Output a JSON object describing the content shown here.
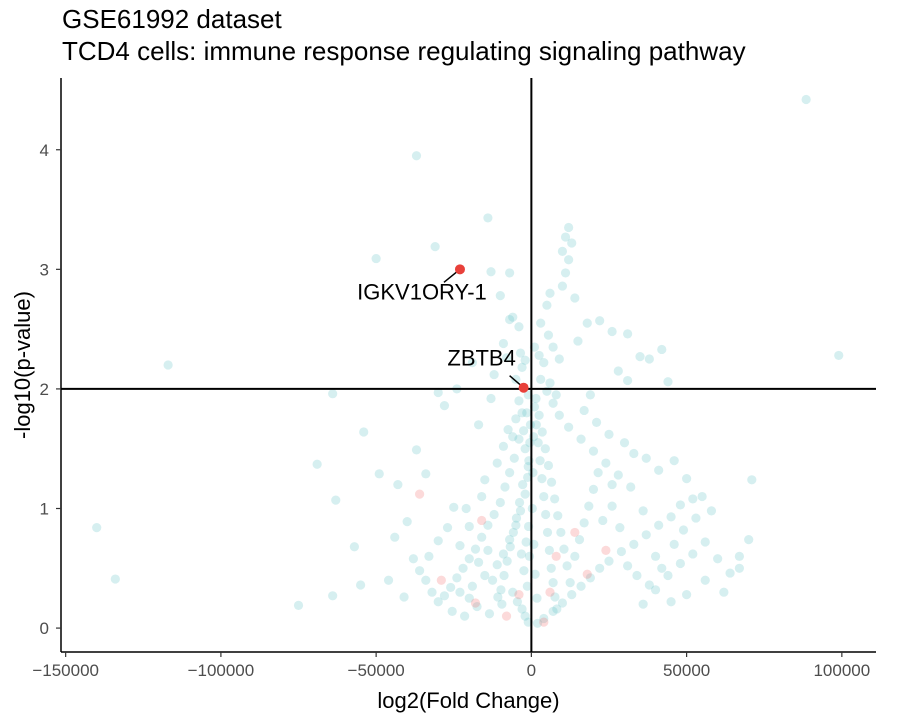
{
  "chart_data": {
    "type": "scatter",
    "title": "GSE61992 dataset",
    "subtitle": "TCD4 cells: immune response regulating signaling pathway",
    "xlabel": "log2(Fold Change)",
    "ylabel": "-log10(p-value)",
    "xlim": [
      -151500,
      111000
    ],
    "ylim": [
      -0.2,
      4.6
    ],
    "xticks": [
      -150000,
      -100000,
      -50000,
      0,
      50000,
      100000
    ],
    "xtick_labels": [
      "−150000",
      "−100000",
      "−50000",
      "0",
      "50000",
      "100000"
    ],
    "yticks": [
      0,
      1,
      2,
      3,
      4
    ],
    "ytick_labels": [
      "0",
      "1",
      "2",
      "3",
      "4"
    ],
    "reference_lines": {
      "x": 0,
      "y": 2
    },
    "grid": false,
    "legend": "none",
    "series": [
      {
        "role": "background",
        "color": "#5bc0c2",
        "opacity": 0.25,
        "points": [
          [
            88500,
            4.42
          ],
          [
            -37000,
            3.95
          ],
          [
            -14000,
            3.43
          ],
          [
            -31000,
            3.19
          ],
          [
            -50000,
            3.09
          ],
          [
            -13000,
            2.98
          ],
          [
            -7000,
            2.97
          ],
          [
            -10000,
            2.78
          ],
          [
            -4000,
            2.52
          ],
          [
            -7000,
            2.58
          ],
          [
            12000,
            3.35
          ],
          [
            11000,
            3.27
          ],
          [
            13000,
            3.22
          ],
          [
            10000,
            3.15
          ],
          [
            12000,
            3.08
          ],
          [
            11000,
            2.97
          ],
          [
            10000,
            2.86
          ],
          [
            14000,
            2.76
          ],
          [
            6000,
            2.8
          ],
          [
            5000,
            2.7
          ],
          [
            -117000,
            2.2
          ],
          [
            99000,
            2.28
          ],
          [
            -64000,
            1.96
          ],
          [
            -37000,
            1.49
          ],
          [
            -54000,
            1.64
          ],
          [
            -69000,
            1.37
          ],
          [
            -63000,
            1.07
          ],
          [
            -49000,
            1.29
          ],
          [
            -43000,
            1.2
          ],
          [
            -34000,
            1.29
          ],
          [
            -57000,
            0.68
          ],
          [
            -44000,
            0.76
          ],
          [
            -40000,
            0.89
          ],
          [
            -38000,
            0.58
          ],
          [
            -30000,
            0.73
          ],
          [
            -140000,
            0.84
          ],
          [
            -134000,
            0.41
          ],
          [
            -75000,
            0.19
          ],
          [
            -64000,
            0.27
          ],
          [
            -55000,
            0.36
          ],
          [
            -46000,
            0.4
          ],
          [
            -25000,
            1.01
          ],
          [
            -23000,
            0.69
          ],
          [
            -20000,
            0.85
          ],
          [
            -16000,
            1.1
          ],
          [
            -28000,
            1.86
          ],
          [
            -30000,
            1.97
          ],
          [
            -24000,
            2.0
          ],
          [
            -19000,
            2.22
          ],
          [
            -17000,
            1.7
          ],
          [
            -12000,
            2.12
          ],
          [
            -13000,
            1.92
          ],
          [
            -9000,
            2.38
          ],
          [
            -8000,
            2.26
          ],
          [
            -6000,
            2.6
          ],
          [
            -3000,
            2.18
          ],
          [
            -2000,
            2.24
          ],
          [
            -1000,
            1.95
          ],
          [
            -1500,
            1.8
          ],
          [
            -2500,
            1.65
          ],
          [
            -4000,
            1.58
          ],
          [
            -5500,
            1.42
          ],
          [
            -7000,
            1.3
          ],
          [
            -8500,
            1.18
          ],
          [
            -10000,
            1.05
          ],
          [
            -12000,
            0.95
          ],
          [
            -14000,
            0.86
          ],
          [
            -16000,
            0.76
          ],
          [
            -18000,
            0.66
          ],
          [
            -20000,
            0.58
          ],
          [
            -22000,
            0.5
          ],
          [
            -24000,
            0.42
          ],
          [
            -26000,
            0.34
          ],
          [
            -28000,
            0.27
          ],
          [
            -30000,
            0.22
          ],
          [
            -32000,
            0.3
          ],
          [
            -34000,
            0.4
          ],
          [
            -36000,
            0.48
          ],
          [
            -19000,
            0.35
          ],
          [
            -15000,
            0.44
          ],
          [
            -11000,
            0.53
          ],
          [
            -9000,
            0.62
          ],
          [
            -7000,
            0.74
          ],
          [
            -5000,
            0.86
          ],
          [
            -3500,
            0.98
          ],
          [
            -2000,
            1.12
          ],
          [
            -1200,
            1.26
          ],
          [
            -800,
            1.4
          ],
          [
            -500,
            1.55
          ],
          [
            -300,
            1.7
          ],
          [
            -6000,
            0.3
          ],
          [
            -4500,
            0.22
          ],
          [
            -3000,
            0.16
          ],
          [
            -2000,
            0.1
          ],
          [
            -1000,
            0.05
          ],
          [
            -9500,
            0.2
          ],
          [
            -13500,
            0.12
          ],
          [
            -17500,
            0.18
          ],
          [
            -21500,
            0.1
          ],
          [
            -25500,
            0.14
          ],
          [
            1000,
            2.35
          ],
          [
            2500,
            2.28
          ],
          [
            4000,
            2.22
          ],
          [
            6000,
            2.05
          ],
          [
            8000,
            1.95
          ],
          [
            3000,
            2.55
          ],
          [
            5500,
            2.45
          ],
          [
            7000,
            2.35
          ],
          [
            9000,
            2.25
          ],
          [
            15000,
            2.4
          ],
          [
            18000,
            2.55
          ],
          [
            22000,
            2.57
          ],
          [
            26000,
            2.48
          ],
          [
            31000,
            2.46
          ],
          [
            35000,
            2.27
          ],
          [
            38000,
            2.25
          ],
          [
            42000,
            2.33
          ],
          [
            44000,
            2.06
          ],
          [
            31000,
            2.07
          ],
          [
            28000,
            2.15
          ],
          [
            19000,
            1.95
          ],
          [
            17000,
            1.82
          ],
          [
            21000,
            1.72
          ],
          [
            25000,
            1.62
          ],
          [
            30000,
            1.55
          ],
          [
            33000,
            1.46
          ],
          [
            37000,
            1.42
          ],
          [
            41000,
            1.32
          ],
          [
            46000,
            1.4
          ],
          [
            50000,
            1.25
          ],
          [
            52000,
            1.08
          ],
          [
            55000,
            1.1
          ],
          [
            48000,
            1.03
          ],
          [
            45000,
            0.93
          ],
          [
            41000,
            0.86
          ],
          [
            37000,
            0.78
          ],
          [
            33000,
            0.7
          ],
          [
            29000,
            0.64
          ],
          [
            25000,
            0.56
          ],
          [
            22000,
            0.5
          ],
          [
            19000,
            0.42
          ],
          [
            16000,
            0.35
          ],
          [
            13000,
            0.28
          ],
          [
            10000,
            0.21
          ],
          [
            7000,
            0.14
          ],
          [
            4000,
            0.08
          ],
          [
            2000,
            0.04
          ],
          [
            36000,
            0.2
          ],
          [
            40000,
            0.32
          ],
          [
            44000,
            0.44
          ],
          [
            48000,
            0.54
          ],
          [
            52000,
            0.62
          ],
          [
            56000,
            0.72
          ],
          [
            60000,
            0.58
          ],
          [
            64000,
            0.46
          ],
          [
            67000,
            0.5
          ],
          [
            70000,
            0.74
          ],
          [
            71000,
            1.24
          ],
          [
            56000,
            0.4
          ],
          [
            50000,
            0.28
          ],
          [
            45000,
            0.22
          ],
          [
            40000,
            0.6
          ],
          [
            36000,
            0.98
          ],
          [
            32000,
            1.18
          ],
          [
            28000,
            1.28
          ],
          [
            24000,
            1.38
          ],
          [
            20000,
            1.48
          ],
          [
            16000,
            1.58
          ],
          [
            12000,
            1.68
          ],
          [
            9000,
            1.78
          ],
          [
            7000,
            1.88
          ],
          [
            5000,
            1.98
          ],
          [
            3000,
            2.08
          ],
          [
            1500,
            1.92
          ],
          [
            2500,
            1.78
          ],
          [
            3500,
            1.64
          ],
          [
            4500,
            1.5
          ],
          [
            5500,
            1.36
          ],
          [
            6500,
            1.22
          ],
          [
            7500,
            1.08
          ],
          [
            8500,
            0.94
          ],
          [
            9500,
            0.8
          ],
          [
            10500,
            0.66
          ],
          [
            11500,
            0.52
          ],
          [
            12500,
            0.38
          ],
          [
            14000,
            0.6
          ],
          [
            15500,
            0.74
          ],
          [
            17000,
            0.88
          ],
          [
            18500,
            1.02
          ],
          [
            20000,
            1.16
          ],
          [
            21500,
            1.3
          ],
          [
            23000,
            0.9
          ],
          [
            26000,
            1.02
          ],
          [
            28500,
            0.84
          ],
          [
            31000,
            0.52
          ],
          [
            34000,
            0.44
          ],
          [
            38000,
            0.36
          ],
          [
            42000,
            0.5
          ],
          [
            46000,
            0.7
          ],
          [
            49000,
            0.82
          ],
          [
            53000,
            0.92
          ],
          [
            58000,
            0.98
          ],
          [
            62000,
            0.3
          ],
          [
            67000,
            0.6
          ],
          [
            26000,
            1.2
          ],
          [
            -3000,
            1.8
          ],
          [
            -4000,
            1.9
          ],
          [
            -5000,
            1.75
          ],
          [
            -6000,
            1.6
          ],
          [
            -2000,
            1.5
          ],
          [
            -1000,
            1.35
          ],
          [
            -2800,
            1.2
          ],
          [
            -3800,
            1.05
          ],
          [
            -4800,
            0.92
          ],
          [
            -5800,
            0.8
          ],
          [
            -6800,
            0.68
          ],
          [
            -7800,
            0.56
          ],
          [
            -8800,
            0.44
          ],
          [
            -9800,
            0.32
          ],
          [
            -10800,
            0.26
          ],
          [
            1000,
            1.85
          ],
          [
            1600,
            1.7
          ],
          [
            2200,
            1.55
          ],
          [
            2800,
            1.4
          ],
          [
            3400,
            1.25
          ],
          [
            4000,
            1.1
          ],
          [
            4600,
            0.95
          ],
          [
            5200,
            0.8
          ],
          [
            5800,
            0.65
          ],
          [
            6400,
            0.5
          ],
          [
            7000,
            0.38
          ],
          [
            7600,
            0.26
          ],
          [
            8200,
            0.16
          ],
          [
            700,
            1.6
          ],
          [
            500,
            1.3
          ],
          [
            300,
            1.0
          ],
          [
            800,
            0.7
          ],
          [
            1200,
            0.45
          ],
          [
            1800,
            0.25
          ],
          [
            -600,
            0.6
          ],
          [
            -900,
            0.85
          ],
          [
            -1300,
            0.35
          ],
          [
            -1700,
            0.72
          ],
          [
            -2400,
            0.48
          ],
          [
            -3200,
            0.62
          ],
          [
            -41000,
            0.26
          ],
          [
            -33000,
            0.6
          ],
          [
            -27000,
            0.84
          ],
          [
            -21000,
            1.0
          ],
          [
            -15000,
            1.24
          ],
          [
            -11000,
            1.38
          ],
          [
            -9000,
            1.52
          ],
          [
            -7500,
            1.66
          ],
          [
            -5000,
            2.08
          ],
          [
            -3500,
            2.3
          ],
          [
            -20000,
            0.25
          ],
          [
            -17000,
            0.55
          ],
          [
            -14000,
            0.65
          ],
          [
            -12500,
            0.4
          ],
          [
            -23000,
            0.3
          ]
        ]
      },
      {
        "role": "background-highlight",
        "color": "#f26b6b",
        "opacity": 0.25,
        "points": [
          [
            -36000,
            1.12
          ],
          [
            -29000,
            0.4
          ],
          [
            -18000,
            0.21
          ],
          [
            -16000,
            0.9
          ],
          [
            -8000,
            0.1
          ],
          [
            -4000,
            0.28
          ],
          [
            4000,
            0.05
          ],
          [
            6000,
            0.3
          ],
          [
            14000,
            0.8
          ],
          [
            18000,
            0.45
          ],
          [
            24000,
            0.65
          ],
          [
            8000,
            0.6
          ]
        ]
      },
      {
        "role": "labelled",
        "color": "#e8403a",
        "opacity": 1,
        "points": [
          {
            "x": -23000,
            "y": 3.0,
            "label": "IGKV1ORY-1"
          },
          {
            "x": -2500,
            "y": 2.01,
            "label": "ZBTB4"
          }
        ]
      }
    ]
  }
}
